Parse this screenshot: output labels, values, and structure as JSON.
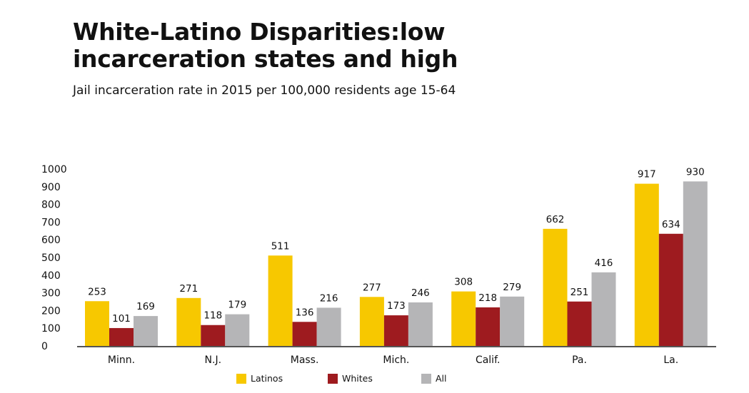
{
  "chart_data": {
    "type": "bar",
    "title": "White-Latino Disparities:low incarceration states and high",
    "subtitle": "Jail incarceration rate in 2015 per 100,000 residents age 15-64",
    "categories": [
      "Minn.",
      "N.J.",
      "Mass.",
      "Mich.",
      "Calif.",
      "Pa.",
      "La."
    ],
    "series": [
      {
        "name": "Latinos",
        "color": "#F7C800",
        "values": [
          253,
          271,
          511,
          277,
          308,
          662,
          917
        ]
      },
      {
        "name": "Whites",
        "color": "#9E1B1F",
        "values": [
          101,
          118,
          136,
          173,
          218,
          251,
          634
        ]
      },
      {
        "name": "All",
        "color": "#B5B5B7",
        "values": [
          169,
          179,
          216,
          246,
          279,
          416,
          930
        ]
      }
    ],
    "ylim": [
      0,
      1000
    ],
    "yticks": [
      "0",
      "100",
      "200",
      "300",
      "400",
      "500",
      "600",
      "700",
      "800",
      "900",
      "1000"
    ],
    "grid": false,
    "legend_position": "bottom"
  }
}
